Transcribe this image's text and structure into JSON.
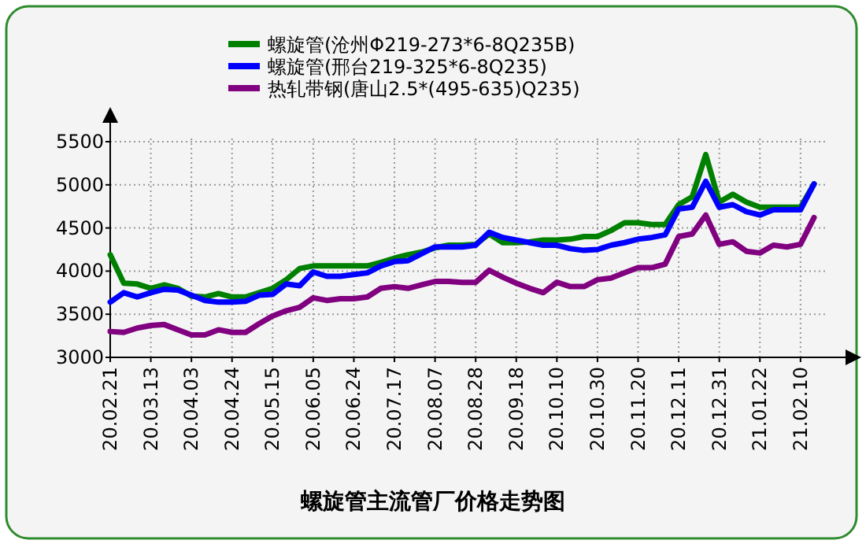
{
  "chart_data": {
    "type": "line",
    "title": "螺旋管主流管厂价格走势图",
    "legend": "top",
    "grid": true,
    "marker": "none",
    "line_style": "solid",
    "ylim": [
      3000,
      5500
    ],
    "yticks": [
      3000,
      3500,
      4000,
      4500,
      5000,
      5500
    ],
    "categories": [
      "20.02.21",
      null,
      null,
      "20.03.13",
      null,
      null,
      "20.04.03",
      null,
      null,
      "20.04.24",
      null,
      null,
      "20.05.15",
      null,
      null,
      "20.06.05",
      null,
      null,
      "20.06.24",
      null,
      null,
      "20.07.17",
      null,
      null,
      "20.08.07",
      null,
      null,
      "20.08.28",
      null,
      null,
      "20.09.18",
      null,
      null,
      "20.10.10",
      null,
      null,
      "20.10.30",
      null,
      null,
      "20.11.20",
      null,
      null,
      "20.12.11",
      null,
      null,
      "20.12.31",
      null,
      null,
      "21.01.22",
      null,
      null,
      "21.02.10",
      null
    ],
    "series": [
      {
        "name": "螺旋管(沧州Φ219-273*6-8Q235B)",
        "color": "#008000",
        "values": [
          4190,
          3860,
          3850,
          3800,
          3840,
          3800,
          3710,
          3700,
          3740,
          3700,
          3700,
          3750,
          3800,
          3900,
          4030,
          4060,
          4060,
          4060,
          4060,
          4060,
          4100,
          4150,
          4190,
          4220,
          4270,
          4300,
          4300,
          4310,
          4430,
          4330,
          4330,
          4340,
          4360,
          4360,
          4370,
          4400,
          4400,
          4470,
          4560,
          4560,
          4540,
          4540,
          4770,
          4860,
          5350,
          4800,
          4890,
          4800,
          4740,
          4740,
          4740,
          4740,
          5010
        ]
      },
      {
        "name": "螺旋管(邢台219-325*6-8Q235)",
        "color": "#0000ff",
        "values": [
          3640,
          3750,
          3700,
          3750,
          3790,
          3780,
          3720,
          3660,
          3640,
          3640,
          3650,
          3720,
          3730,
          3850,
          3830,
          3990,
          3940,
          3940,
          3960,
          3980,
          4060,
          4110,
          4120,
          4200,
          4280,
          4280,
          4280,
          4300,
          4450,
          4390,
          4360,
          4330,
          4300,
          4300,
          4260,
          4240,
          4250,
          4300,
          4330,
          4370,
          4390,
          4420,
          4720,
          4740,
          5040,
          4740,
          4770,
          4690,
          4650,
          4710,
          4710,
          4710,
          5010
        ]
      },
      {
        "name": "热轧带钢(唐山2.5*(495-635)Q235)",
        "color": "#800080",
        "values": [
          3300,
          3290,
          3340,
          3370,
          3380,
          3320,
          3260,
          3260,
          3320,
          3290,
          3290,
          3390,
          3480,
          3540,
          3580,
          3690,
          3660,
          3680,
          3680,
          3700,
          3800,
          3820,
          3800,
          3840,
          3880,
          3880,
          3870,
          3870,
          4010,
          3930,
          3860,
          3800,
          3750,
          3870,
          3820,
          3820,
          3900,
          3920,
          3980,
          4040,
          4040,
          4080,
          4400,
          4430,
          4650,
          4310,
          4340,
          4230,
          4210,
          4300,
          4280,
          4310,
          4620
        ]
      }
    ]
  }
}
